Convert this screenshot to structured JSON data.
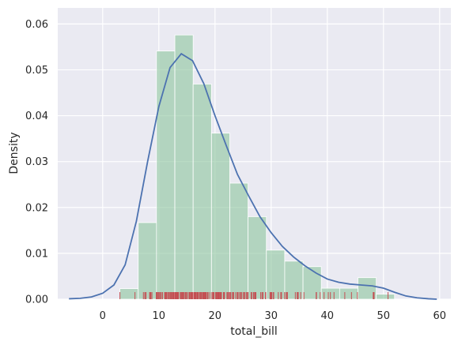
{
  "chart_data": {
    "type": "bar",
    "subtype": "histogram-with-kde-and-rug",
    "xlabel": "total_bill",
    "ylabel": "Density",
    "xlim": [
      -8,
      62
    ],
    "ylim": [
      0,
      0.0635
    ],
    "xticks": [
      0,
      10,
      20,
      30,
      40,
      50,
      60
    ],
    "yticks": [
      0.0,
      0.01,
      0.02,
      0.03,
      0.04,
      0.05,
      0.06
    ],
    "ytick_labels": [
      "0.00",
      "0.01",
      "0.02",
      "0.03",
      "0.04",
      "0.05",
      "0.06"
    ],
    "grid": true,
    "background": "#eaeaf2",
    "histogram": {
      "color": "#8fc7a0",
      "bins": [
        {
          "x0": 3.07,
          "x1": 6.33,
          "density": 0.0023
        },
        {
          "x0": 6.33,
          "x1": 9.59,
          "density": 0.0167
        },
        {
          "x0": 9.59,
          "x1": 12.85,
          "density": 0.0541
        },
        {
          "x0": 12.85,
          "x1": 16.11,
          "density": 0.0576
        },
        {
          "x0": 16.11,
          "x1": 19.37,
          "density": 0.0469
        },
        {
          "x0": 19.37,
          "x1": 22.63,
          "density": 0.0362
        },
        {
          "x0": 22.63,
          "x1": 25.89,
          "density": 0.0253
        },
        {
          "x0": 25.89,
          "x1": 29.15,
          "density": 0.018
        },
        {
          "x0": 29.15,
          "x1": 32.41,
          "density": 0.0107
        },
        {
          "x0": 32.41,
          "x1": 35.67,
          "density": 0.0083
        },
        {
          "x0": 35.67,
          "x1": 38.93,
          "density": 0.0071
        },
        {
          "x0": 38.93,
          "x1": 42.19,
          "density": 0.0024
        },
        {
          "x0": 42.19,
          "x1": 45.45,
          "density": 0.0024
        },
        {
          "x0": 45.45,
          "x1": 48.71,
          "density": 0.0047
        },
        {
          "x0": 48.71,
          "x1": 51.97,
          "density": 0.0011
        }
      ]
    },
    "kde": {
      "color": "#4c72b0",
      "x": [
        -6,
        -4,
        -2,
        0,
        2,
        4,
        6,
        8,
        10,
        12,
        14,
        16,
        18,
        20,
        22,
        24,
        26,
        28,
        30,
        32,
        34,
        36,
        38,
        40,
        42,
        44,
        46,
        48,
        50,
        52,
        54,
        56,
        58,
        59.5
      ],
      "y": [
        0.0001,
        0.0002,
        0.0005,
        0.0013,
        0.0031,
        0.0075,
        0.017,
        0.03,
        0.042,
        0.0505,
        0.0535,
        0.052,
        0.047,
        0.04,
        0.0335,
        0.0272,
        0.0225,
        0.018,
        0.0145,
        0.0115,
        0.0092,
        0.0073,
        0.0057,
        0.0044,
        0.0037,
        0.0033,
        0.0031,
        0.0029,
        0.0024,
        0.0015,
        0.0007,
        0.0003,
        0.0001,
        0.0
      ]
    },
    "rug": {
      "color": "#c44e52",
      "values": [
        3.07,
        5.75,
        7.25,
        7.51,
        7.56,
        7.74,
        8.35,
        8.51,
        8.52,
        8.58,
        8.77,
        9.55,
        9.6,
        9.68,
        9.78,
        9.94,
        10.07,
        10.27,
        10.29,
        10.33,
        10.34,
        10.59,
        10.63,
        10.65,
        11.02,
        11.17,
        11.24,
        11.35,
        11.38,
        11.59,
        11.61,
        11.69,
        11.87,
        12.02,
        12.16,
        12.26,
        12.43,
        12.46,
        12.54,
        12.6,
        12.69,
        12.74,
        12.9,
        13.0,
        13.03,
        13.13,
        13.27,
        13.37,
        13.39,
        13.42,
        13.51,
        13.81,
        13.94,
        14.07,
        14.15,
        14.26,
        14.31,
        14.48,
        14.52,
        14.73,
        14.78,
        14.83,
        15.01,
        15.04,
        15.06,
        15.36,
        15.42,
        15.48,
        15.53,
        15.69,
        15.77,
        15.81,
        15.95,
        15.98,
        16.0,
        16.21,
        16.27,
        16.29,
        16.31,
        16.4,
        16.43,
        16.45,
        16.47,
        16.58,
        16.66,
        16.82,
        16.93,
        16.97,
        16.99,
        17.07,
        17.29,
        17.31,
        17.46,
        17.47,
        17.51,
        17.59,
        17.78,
        17.81,
        17.82,
        17.89,
        17.92,
        18.04,
        18.15,
        18.24,
        18.26,
        18.28,
        18.29,
        18.35,
        18.43,
        18.64,
        18.69,
        18.71,
        18.78,
        19.08,
        19.44,
        19.49,
        19.65,
        19.77,
        19.81,
        19.82,
        20.08,
        20.23,
        20.27,
        20.29,
        20.45,
        20.53,
        20.65,
        20.69,
        20.76,
        20.9,
        20.92,
        21.01,
        21.16,
        21.5,
        21.58,
        21.7,
        22.12,
        22.23,
        22.42,
        22.49,
        22.67,
        22.75,
        22.76,
        22.82,
        23.1,
        23.17,
        23.33,
        23.68,
        23.95,
        24.01,
        24.06,
        24.27,
        24.52,
        24.55,
        24.59,
        24.71,
        25.0,
        25.21,
        25.28,
        25.29,
        25.56,
        25.71,
        25.89,
        26.41,
        26.59,
        26.86,
        26.88,
        27.05,
        27.18,
        27.2,
        27.28,
        28.15,
        28.17,
        28.44,
        28.55,
        28.97,
        29.03,
        29.8,
        29.85,
        29.93,
        30.06,
        30.14,
        30.4,
        30.46,
        31.27,
        31.71,
        31.85,
        32.4,
        32.68,
        32.83,
        32.9,
        34.3,
        34.63,
        34.65,
        34.81,
        34.83,
        35.26,
        35.83,
        38.01,
        38.07,
        38.73,
        39.42,
        40.17,
        40.55,
        41.19,
        43.11,
        44.3,
        45.35,
        48.17,
        48.27,
        48.33,
        50.81
      ]
    }
  }
}
